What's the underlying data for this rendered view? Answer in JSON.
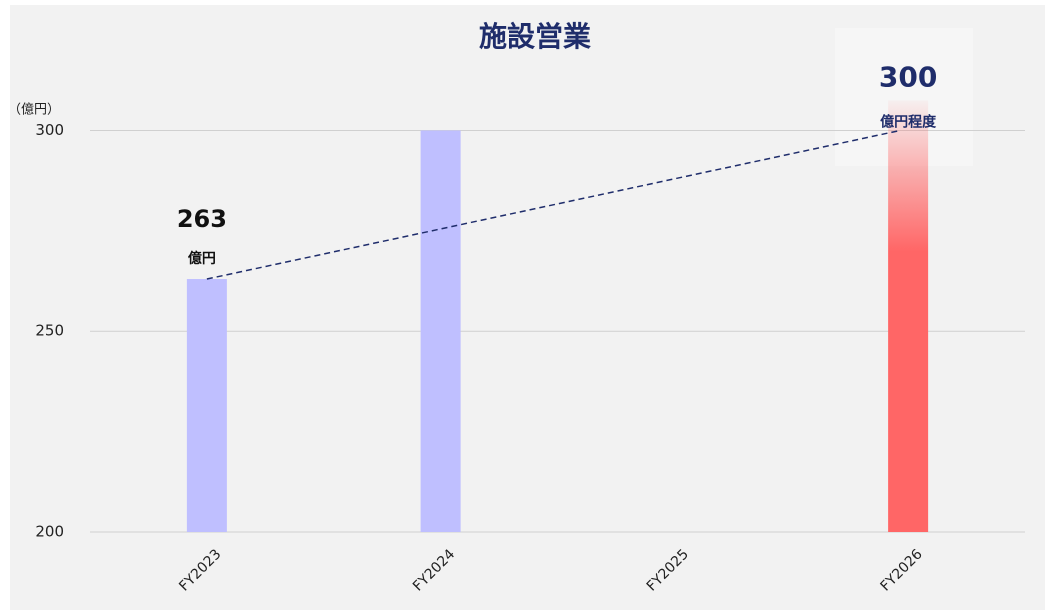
{
  "chart_data": {
    "type": "bar",
    "title": "施設営業",
    "y_axis_label": "（億円）",
    "categories": [
      "FY2023",
      "FY2024",
      "FY2025",
      "FY2026"
    ],
    "values": [
      263,
      300,
      null,
      300
    ],
    "value_labels": [
      "263",
      null,
      null,
      "300"
    ],
    "label_units": [
      "億円",
      null,
      null,
      "億円程度"
    ],
    "colors": [
      "#bfbfff",
      "#bfbfff",
      "#bfbfff",
      "#ff6666"
    ],
    "ylim": [
      200,
      330
    ],
    "yticks": [
      200,
      250,
      300
    ],
    "grid": true,
    "trend_line": true
  }
}
